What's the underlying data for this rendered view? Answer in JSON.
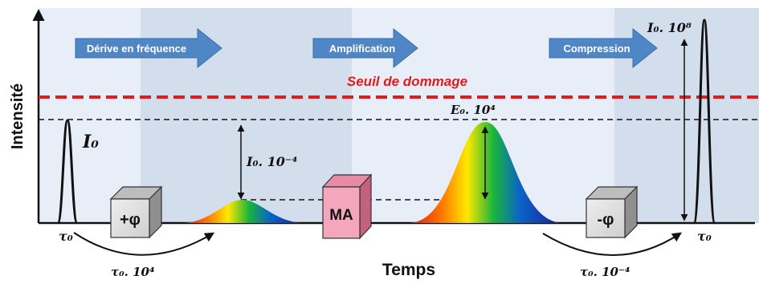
{
  "axes": {
    "y_label": "Intensité",
    "x_label": "Temps"
  },
  "stages": [
    {
      "label": "Dérive en fréquence"
    },
    {
      "label": "Amplification"
    },
    {
      "label": "Compression"
    }
  ],
  "threshold_label": "Seuil de dommage",
  "boxes": {
    "stretcher": "+φ",
    "amplifier": "MA",
    "compressor": "-φ"
  },
  "annotations": {
    "i0": "I₀",
    "i0_low": "I₀. 10⁻⁴",
    "e0_high": "E₀. 10⁴",
    "i0_high": "I₀. 10⁸",
    "tau0_left": "τ₀",
    "tau0_right": "τ₀",
    "tau_stretched": "τ₀. 10⁴",
    "tau_compressed": "τ₀. 10⁻⁴"
  },
  "colors": {
    "threshold": "#e31b1b",
    "stage_arrow": "#4f86c6",
    "band_light": "#e6ecf7",
    "band_dark": "#d0dbeb",
    "amplifier_box": "#f4a6bf",
    "phase_box": "#d9d9d9"
  }
}
